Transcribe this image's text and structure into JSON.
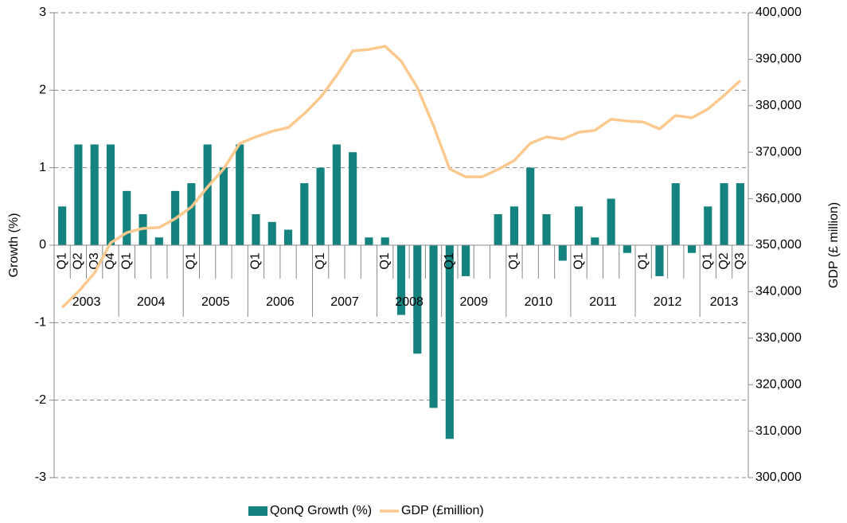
{
  "chart_data": {
    "type": "bar-line",
    "categories": [
      "Q1",
      "Q2",
      "Q3",
      "Q4",
      "Q1",
      null,
      null,
      null,
      "Q1",
      null,
      null,
      null,
      "Q1",
      null,
      null,
      null,
      "Q1",
      null,
      null,
      null,
      "Q1",
      null,
      null,
      null,
      "Q1",
      null,
      null,
      null,
      "Q1",
      null,
      null,
      null,
      "Q1",
      null,
      null,
      null,
      "Q1",
      null,
      null,
      null,
      "Q1",
      "Q2",
      "Q3"
    ],
    "years": [
      "2003",
      "2004",
      "2005",
      "2006",
      "2007",
      "2008",
      "2009",
      "2010",
      "2011",
      "2012",
      "2013"
    ],
    "y_label": "Growth (%)",
    "y2_label": "GDP (£ million)",
    "series": [
      {
        "name": "QonQ Growth (%)",
        "type": "bar",
        "color": "#14827e",
        "values": [
          0.5,
          1.3,
          1.3,
          1.3,
          0.7,
          0.4,
          0.1,
          0.7,
          0.8,
          1.3,
          1.0,
          1.3,
          0.4,
          0.3,
          0.2,
          0.8,
          1.0,
          1.3,
          1.2,
          0.1,
          0.1,
          -0.9,
          -1.4,
          -2.1,
          -2.5,
          -0.4,
          0,
          0.4,
          0.5,
          1.0,
          0.4,
          -0.2,
          0.5,
          0.1,
          0.6,
          -0.1,
          0,
          -0.4,
          0.8,
          -0.1,
          0.5,
          0.8,
          0.8
        ]
      },
      {
        "name": "GDP (£million)",
        "type": "line",
        "axis": "y2",
        "color": "#fbc98e",
        "values": [
          336600,
          340000,
          344000,
          350500,
          352700,
          353600,
          353800,
          355700,
          358200,
          362500,
          366400,
          371900,
          373300,
          374500,
          375300,
          378300,
          381800,
          386500,
          391800,
          392100,
          392800,
          389600,
          383900,
          375700,
          366400,
          364700,
          364700,
          366300,
          368200,
          371900,
          373300,
          372800,
          374300,
          374700,
          377100,
          376700,
          376500,
          375000,
          377900,
          377400,
          379300,
          382200,
          385400
        ]
      }
    ],
    "ylim": [
      -3,
      3
    ],
    "yticks": [
      -3,
      -2,
      -1,
      0,
      1,
      2,
      3
    ],
    "y2lim": [
      300000,
      400000
    ],
    "y2ticks": [
      {
        "value": 300000,
        "label": "300,000"
      },
      {
        "value": 310000,
        "label": "310,000"
      },
      {
        "value": 320000,
        "label": "320,000"
      },
      {
        "value": 330000,
        "label": "330,000"
      },
      {
        "value": 340000,
        "label": "340,000"
      },
      {
        "value": 350000,
        "label": "350,000"
      },
      {
        "value": 360000,
        "label": "360,000"
      },
      {
        "value": 370000,
        "label": "370,000"
      },
      {
        "value": 380000,
        "label": "380,000"
      },
      {
        "value": 390000,
        "label": "390,000"
      },
      {
        "value": 400000,
        "label": "400,000"
      }
    ],
    "grid": true,
    "legend": "bottom"
  }
}
